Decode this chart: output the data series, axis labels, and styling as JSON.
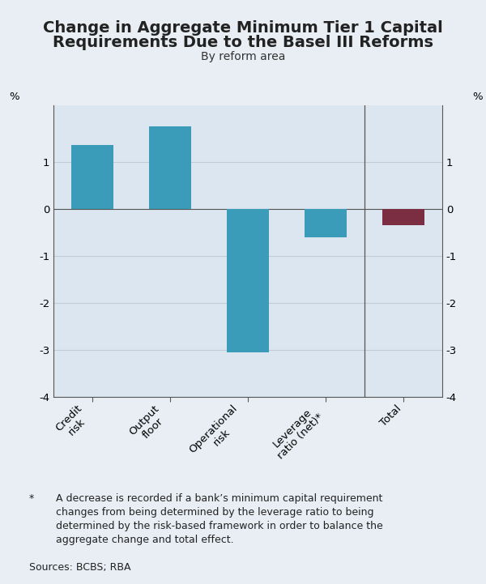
{
  "title_line1": "Change in Aggregate Minimum Tier 1 Capital",
  "title_line2": "Requirements Due to the Basel III Reforms",
  "subtitle": "By reform area",
  "categories": [
    "Credit\nrisk",
    "Output\nfloor",
    "Operational\nrisk",
    "Leverage\nratio (net)*",
    "Total"
  ],
  "values": [
    1.35,
    1.75,
    -3.05,
    -0.6,
    -0.35
  ],
  "bar_colors": [
    "#3a9cb8",
    "#3a9cb8",
    "#3a9cb8",
    "#3a9cb8",
    "#7b2d42"
  ],
  "ylim": [
    -4,
    2.2
  ],
  "yticks": [
    -4,
    -3,
    -2,
    -1,
    0,
    1
  ],
  "ytick_labels": [
    "-4",
    "-3",
    "-2",
    "-1",
    "0",
    "1"
  ],
  "ylabel_left": "%",
  "ylabel_right": "%",
  "background_color": "#e8eef4",
  "plot_bg_color": "#dce6f0",
  "grid_color": "#c0ccd8",
  "bar_width": 0.55,
  "vertical_line_x": 3.5,
  "footnote_star": "*",
  "footnote_text": "A decrease is recorded if a bank’s minimum capital requirement\nchanges from being determined by the leverage ratio to being\ndetermined by the risk-based framework in order to balance the\naggregate change and total effect.",
  "sources_text": "Sources: BCBS; RBA",
  "title_fontsize": 14,
  "subtitle_fontsize": 10,
  "tick_fontsize": 9.5,
  "footnote_fontsize": 9
}
